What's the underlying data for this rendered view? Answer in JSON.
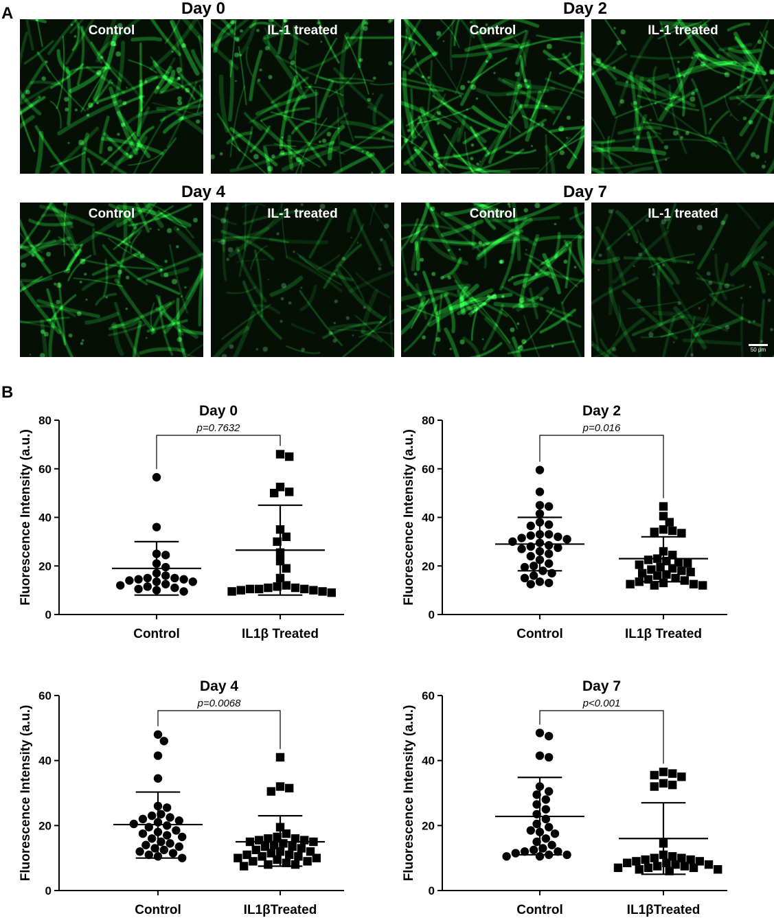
{
  "panel_a": {
    "letter": "A",
    "days": [
      {
        "title": "Day 0",
        "left": {
          "label": "Control",
          "seed": 11,
          "bright": 1.0
        },
        "right": {
          "label": "IL-1 treated",
          "seed": 23,
          "bright": 0.95
        }
      },
      {
        "title": "Day 2",
        "left": {
          "label": "Control",
          "seed": 37,
          "bright": 1.05
        },
        "right": {
          "label": "IL-1 treated",
          "seed": 41,
          "bright": 0.9
        }
      },
      {
        "title": "Day 4",
        "left": {
          "label": "Control",
          "seed": 53,
          "bright": 0.95
        },
        "right": {
          "label": "IL-1 treated",
          "seed": 67,
          "bright": 0.6
        }
      },
      {
        "title": "Day 7",
        "left": {
          "label": "Control",
          "seed": 71,
          "bright": 1.05
        },
        "right": {
          "label": "IL-1 treated",
          "seed": 89,
          "bright": 0.6
        }
      }
    ],
    "scale_bar": "50 μm"
  },
  "panel_b": {
    "letter": "B"
  },
  "chart_data": [
    {
      "type": "scatter",
      "title": "Day 0",
      "ylabel": "Fluorescence Intensity (a.u.)",
      "ylim": [
        0,
        80
      ],
      "yticks": [
        0,
        20,
        40,
        60,
        80
      ],
      "categories": [
        "Control",
        "IL1β Treated"
      ],
      "pvalue": "p=0.7632",
      "series": [
        {
          "marker": "circle",
          "mean": 19,
          "sd_low": 8,
          "sd_high": 30,
          "values": [
            56.5,
            36,
            25,
            24.5,
            21,
            19.5,
            17,
            16,
            15,
            15,
            14.5,
            14.5,
            14,
            13.5,
            13.5,
            12.5,
            12,
            11.5,
            11,
            10.5,
            10,
            9.5
          ]
        },
        {
          "marker": "square",
          "mean": 26.5,
          "sd_low": 8,
          "sd_high": 45,
          "values": [
            66,
            65,
            52.5,
            50.5,
            50,
            35,
            32,
            30,
            25.5,
            22,
            19,
            15,
            12,
            11.5,
            11,
            11,
            10.5,
            10.5,
            10.5,
            10,
            10,
            9.5,
            9.5,
            9
          ]
        }
      ]
    },
    {
      "type": "scatter",
      "title": "Day 2",
      "ylabel": "Fluorescence Intensity (a.u.)",
      "ylim": [
        0,
        80
      ],
      "yticks": [
        0,
        20,
        40,
        60,
        80
      ],
      "categories": [
        "Control",
        "IL1β Treated"
      ],
      "pvalue": "p=0.016",
      "series": [
        {
          "marker": "circle",
          "mean": 29,
          "sd_low": 18,
          "sd_high": 40,
          "values": [
            59.5,
            50.5,
            45,
            44.5,
            41.5,
            38,
            37,
            36.5,
            33,
            33,
            32.5,
            32,
            31.5,
            31,
            30,
            29.5,
            28.5,
            28,
            27.5,
            27,
            26,
            25,
            24,
            22.5,
            21,
            20,
            19.5,
            18,
            17,
            16,
            15,
            13.5,
            13,
            12.5
          ]
        },
        {
          "marker": "square",
          "mean": 23,
          "sd_low": 13.5,
          "sd_high": 32,
          "values": [
            44.5,
            40.5,
            38,
            35,
            34.5,
            34,
            33.5,
            26,
            24.5,
            23,
            22.5,
            22,
            21.5,
            21,
            20.5,
            19.5,
            19,
            18.5,
            18,
            17.5,
            17,
            16.5,
            16,
            15,
            14.5,
            14,
            13.5,
            13,
            12.5,
            12.5,
            12,
            12
          ]
        }
      ]
    },
    {
      "type": "scatter",
      "title": "Day 4",
      "ylabel": "Fluorescence Intensity (a.u.)",
      "ylim": [
        0,
        60
      ],
      "yticks": [
        0,
        20,
        40,
        60
      ],
      "categories": [
        "Control",
        "IL1βTreated"
      ],
      "pvalue": "p=0.0068",
      "series": [
        {
          "marker": "circle",
          "mean": 20.3,
          "sd_low": 10,
          "sd_high": 30.3,
          "values": [
            48,
            46,
            41.5,
            34.5,
            26,
            25.5,
            23.5,
            23,
            22.5,
            22,
            21.5,
            21,
            20.5,
            20,
            19.5,
            18.5,
            18,
            17.5,
            17,
            16.5,
            16,
            15,
            14.5,
            14,
            13.5,
            13,
            12.5,
            12,
            11.5,
            11,
            10.5,
            10
          ]
        },
        {
          "marker": "square",
          "mean": 15,
          "sd_low": 7.5,
          "sd_high": 23,
          "values": [
            41,
            32,
            31.5,
            30.5,
            19.5,
            17.5,
            16.5,
            16,
            16,
            15.5,
            15.5,
            15,
            15,
            14.5,
            14,
            13.5,
            13.5,
            13,
            12.5,
            12,
            12,
            11.5,
            11,
            11,
            10.5,
            10.5,
            10,
            10,
            9.5,
            9,
            9,
            8.5,
            8,
            8,
            7.5
          ]
        }
      ]
    },
    {
      "type": "scatter",
      "title": "Day 7",
      "ylabel": "Fluorescence Intensity (a.u.)",
      "ylim": [
        0,
        60
      ],
      "yticks": [
        0,
        20,
        40,
        60
      ],
      "categories": [
        "Control",
        "IL1βTreated"
      ],
      "pvalue": "p<0.001",
      "series": [
        {
          "marker": "circle",
          "mean": 22.8,
          "sd_low": 11,
          "sd_high": 34.8,
          "values": [
            48.5,
            47.5,
            41.5,
            41,
            32,
            30.5,
            29.5,
            28,
            26.5,
            25,
            23.5,
            22,
            20.5,
            19.5,
            18.5,
            18,
            17.5,
            16,
            15,
            14,
            13,
            12.5,
            12,
            12,
            11.5,
            11,
            11,
            10.5,
            10.5
          ]
        },
        {
          "marker": "square",
          "mean": 16,
          "sd_low": 5,
          "sd_high": 27,
          "values": [
            36.5,
            36,
            35.5,
            35,
            33,
            32.5,
            32,
            14.5,
            11,
            10.5,
            10,
            10,
            9.5,
            9.5,
            9,
            9,
            8.5,
            8.5,
            8,
            8,
            7.5,
            7.5,
            7,
            7,
            7,
            6.5,
            6.5,
            6
          ]
        }
      ]
    }
  ]
}
